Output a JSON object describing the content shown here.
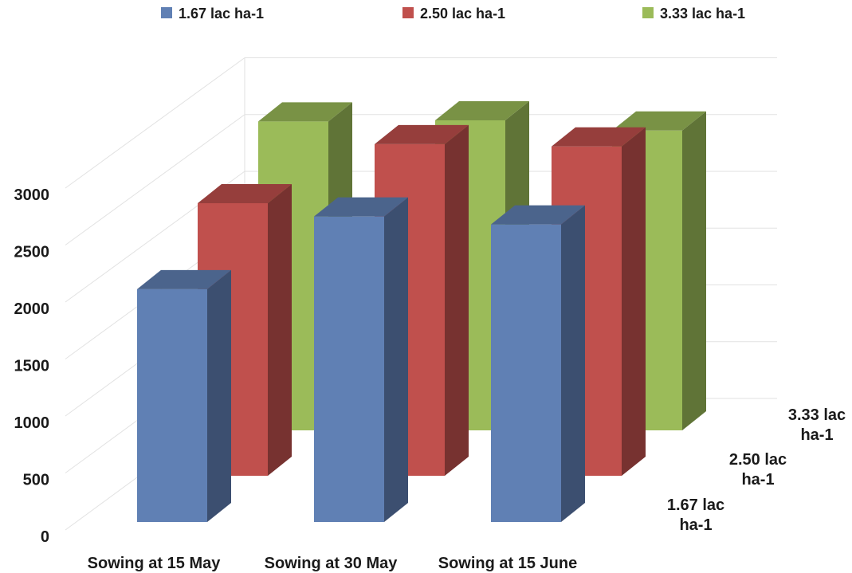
{
  "chart_data": {
    "type": "bar",
    "subtype": "3d-clustered-column",
    "title": "",
    "xlabel": "",
    "ylabel": "",
    "categories": [
      "Sowing at 15 May",
      "Sowing at 30 May",
      "Sowing at 15 June"
    ],
    "series": [
      {
        "name": "1.67 lac ha-1",
        "depth_label": [
          "1.67 lac",
          "ha-1"
        ],
        "color": "#6080b4",
        "values": [
          2050,
          2690,
          2620
        ]
      },
      {
        "name": "2.50 lac ha-1",
        "depth_label": [
          "2.50 lac",
          "ha-1"
        ],
        "color": "#c0504d",
        "values": [
          2400,
          2920,
          2900
        ]
      },
      {
        "name": "3.33 lac ha-1",
        "depth_label": [
          "3.33 lac",
          "ha-1"
        ],
        "color": "#9bbb59",
        "values": [
          2720,
          2730,
          2640
        ]
      }
    ],
    "y_ticks": [
      0,
      500,
      1000,
      1500,
      2000,
      2500,
      3000
    ],
    "ylim": [
      0,
      4000
    ],
    "grid": true,
    "legend": "top"
  }
}
